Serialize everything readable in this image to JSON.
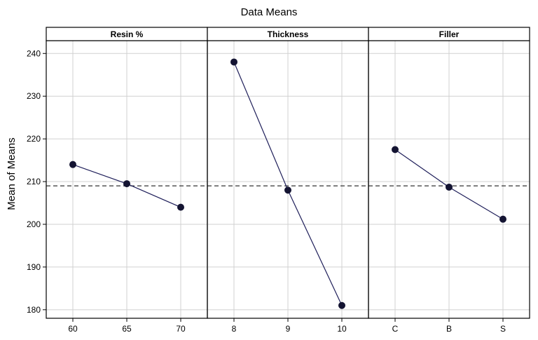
{
  "chart_data": {
    "type": "line",
    "title": "Data Means",
    "ylabel": "Mean of Means",
    "ylim": [
      178,
      243
    ],
    "yticks": [
      180,
      190,
      200,
      210,
      220,
      230,
      240
    ],
    "reference_line": 209,
    "grid": true,
    "line_color": "#1f1f5a",
    "panels": [
      {
        "name": "Resin %",
        "categories": [
          "60",
          "65",
          "70"
        ],
        "values": [
          214,
          209.5,
          204
        ]
      },
      {
        "name": "Thickness",
        "categories": [
          "8",
          "9",
          "10"
        ],
        "values": [
          238,
          208,
          181
        ]
      },
      {
        "name": "Filler",
        "categories": [
          "C",
          "B",
          "S"
        ],
        "values": [
          217.5,
          208.7,
          201.2
        ]
      }
    ]
  }
}
